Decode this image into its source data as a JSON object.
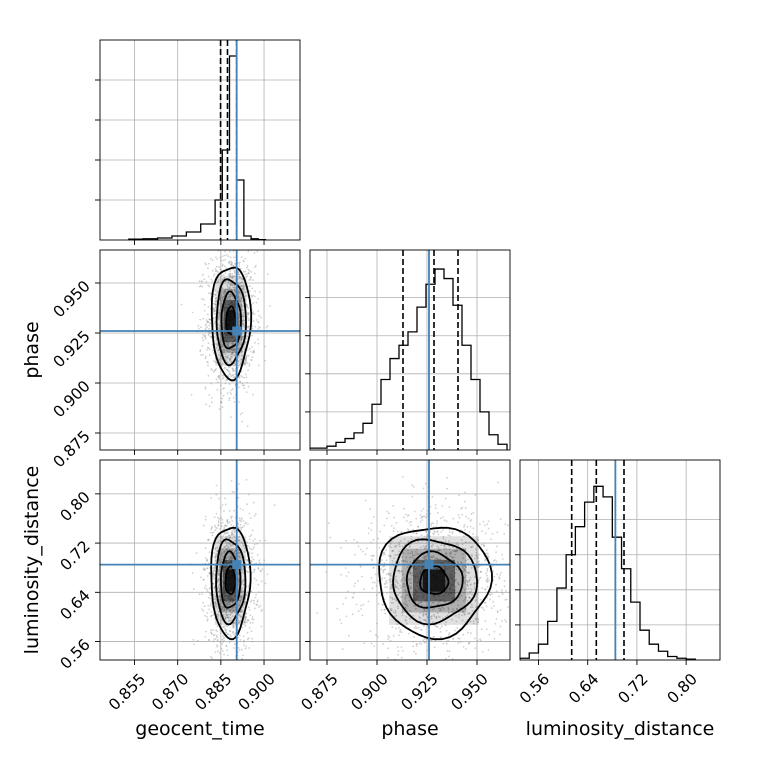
{
  "chart_data": {
    "type": "corner",
    "parameters": [
      {
        "key": "geocent_time",
        "label": "geocent_time",
        "range": [
          0.843,
          0.9125
        ],
        "ticks": [
          0.855,
          0.87,
          0.885,
          0.9
        ],
        "tick_labels": [
          "0.855",
          "0.870",
          "0.885",
          "0.900"
        ],
        "truth": 0.8905
      },
      {
        "key": "phase",
        "label": "phase",
        "range": [
          0.8665,
          0.9665
        ],
        "ticks": [
          0.875,
          0.9,
          0.925,
          0.95
        ],
        "tick_labels": [
          "0.875",
          "0.900",
          "0.925",
          "0.950"
        ],
        "truth": 0.926
      },
      {
        "key": "luminosity_distance",
        "label": "luminosity_distance",
        "range": [
          0.53,
          0.855
        ],
        "ticks": [
          0.56,
          0.64,
          0.72,
          0.8
        ],
        "tick_labels": [
          "0.56",
          "0.64",
          "0.72",
          "0.80"
        ],
        "truth": 0.685
      }
    ],
    "marginals": [
      {
        "parameter": "geocent_time",
        "bins": [
          0.853,
          0.858,
          0.863,
          0.868,
          0.873,
          0.878,
          0.883,
          0.8855,
          0.888,
          0.8905,
          0.893,
          0.8955,
          0.898,
          0.9005
        ],
        "counts": [
          0.004,
          0.006,
          0.01,
          0.02,
          0.04,
          0.08,
          0.2,
          0.45,
          0.92,
          0.3,
          0.02,
          0.006,
          0.002
        ],
        "ymax": 1.0,
        "quantiles": [
          0.8849,
          0.8873,
          0.8905
        ]
      },
      {
        "parameter": "phase",
        "bins": [
          0.866,
          0.8705,
          0.875,
          0.8795,
          0.884,
          0.8885,
          0.893,
          0.8975,
          0.902,
          0.9065,
          0.911,
          0.9155,
          0.92,
          0.9245,
          0.929,
          0.9335,
          0.938,
          0.9425,
          0.947,
          0.9515,
          0.956,
          0.9605,
          0.965
        ],
        "counts": [
          0.01,
          0.01,
          0.02,
          0.04,
          0.06,
          0.09,
          0.14,
          0.24,
          0.37,
          0.48,
          0.55,
          0.62,
          0.75,
          0.87,
          0.95,
          0.9,
          0.76,
          0.55,
          0.37,
          0.2,
          0.08,
          0.03
        ],
        "ymax": 1.05,
        "quantiles": [
          0.913,
          0.9285,
          0.9405
        ]
      },
      {
        "parameter": "luminosity_distance",
        "bins": [
          0.53,
          0.545,
          0.56,
          0.575,
          0.59,
          0.605,
          0.62,
          0.635,
          0.65,
          0.665,
          0.68,
          0.695,
          0.71,
          0.725,
          0.74,
          0.755,
          0.77,
          0.785,
          0.8,
          0.815
        ],
        "counts": [
          0.01,
          0.04,
          0.09,
          0.22,
          0.41,
          0.6,
          0.76,
          0.9,
          0.99,
          0.93,
          0.7,
          0.52,
          0.33,
          0.17,
          0.09,
          0.05,
          0.02,
          0.01,
          0.005
        ],
        "ymax": 1.14,
        "quantiles": [
          0.614,
          0.654,
          0.699
        ]
      }
    ],
    "joint_panels": [
      {
        "x": "geocent_time",
        "y": "phase",
        "center": [
          0.8885,
          0.931
        ],
        "spread": [
          0.0034,
          0.014
        ],
        "contour_levels": [
          0.5,
          1.0,
          1.5,
          2.0
        ]
      },
      {
        "x": "geocent_time",
        "y": "luminosity_distance",
        "center": [
          0.8883,
          0.659
        ],
        "spread": [
          0.0034,
          0.045
        ],
        "contour_levels": [
          0.5,
          1.0,
          1.5,
          2.0
        ]
      },
      {
        "x": "phase",
        "y": "luminosity_distance",
        "center": [
          0.9285,
          0.659
        ],
        "spread": [
          0.014,
          0.045
        ],
        "contour_levels": [
          0.5,
          1.0,
          1.5,
          2.0
        ]
      }
    ],
    "grid": true,
    "truth_color": "#4682b4",
    "contour_color": "#000000",
    "hist_color": "#000000"
  }
}
